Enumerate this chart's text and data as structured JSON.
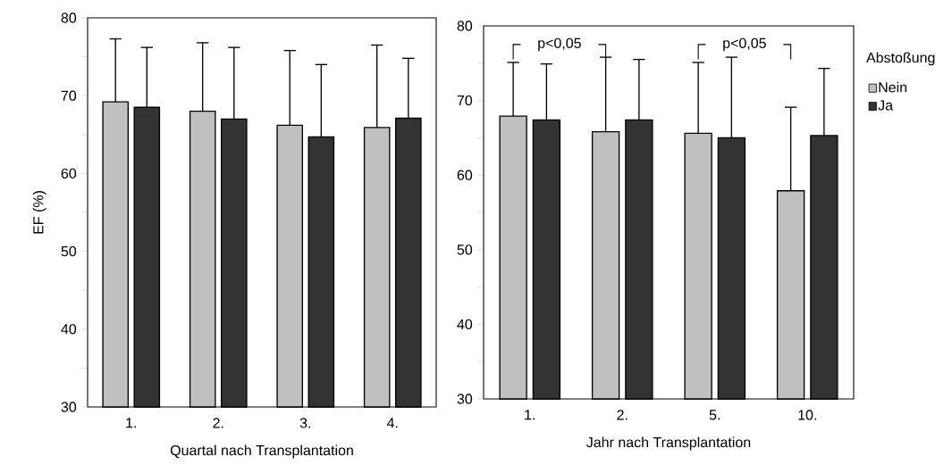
{
  "chart_data": [
    {
      "type": "bar",
      "xlabel": "Quartal nach Transplantation",
      "ylabel": "EF (%)",
      "categories": [
        "1.",
        "2.",
        "3.",
        "4."
      ],
      "series": [
        {
          "color": "#c0c0c0",
          "values": [
            69.2,
            68.0,
            66.2,
            65.9
          ],
          "errors": [
            [
              69.2,
              77.3
            ],
            [
              68.0,
              76.8
            ],
            [
              66.2,
              75.8
            ],
            [
              65.9,
              76.5
            ]
          ]
        },
        {
          "color": "#333333",
          "values": [
            68.5,
            67.0,
            64.7,
            67.1
          ],
          "errors": [
            [
              68.5,
              76.2
            ],
            [
              67.0,
              76.2
            ],
            [
              64.7,
              74.0
            ],
            [
              67.1,
              74.8
            ]
          ]
        }
      ],
      "ylim": [
        30,
        80
      ],
      "yticks": [
        30,
        {
          "value": 35,
          "label": null
        },
        40,
        {
          "value": 45,
          "label": null
        },
        50,
        {
          "value": 55,
          "label": null
        },
        60,
        {
          "value": 65,
          "label": null
        },
        70,
        {
          "value": 75,
          "label": null
        },
        80
      ],
      "grid": false,
      "legend": false
    },
    {
      "type": "bar",
      "xlabel": "Jahr nach Transplantation",
      "legend_title": "Abstoßung",
      "categories": [
        "1.",
        "2.",
        "5.",
        "10."
      ],
      "series": [
        {
          "name": "Nein",
          "color": "#c0c0c0",
          "values": [
            67.9,
            65.8,
            65.6,
            57.9
          ],
          "errors": [
            [
              67.9,
              75.1
            ],
            [
              65.8,
              75.8
            ],
            [
              65.6,
              75.1
            ],
            [
              57.9,
              69.1
            ]
          ]
        },
        {
          "name": "Ja",
          "color": "#333333",
          "values": [
            67.4,
            67.4,
            65.0,
            65.3
          ],
          "errors": [
            [
              67.4,
              74.9
            ],
            [
              67.4,
              75.5
            ],
            [
              65.0,
              75.8
            ],
            [
              65.3,
              74.3
            ]
          ]
        }
      ],
      "ylim": [
        30,
        80
      ],
      "yticks": [
        30,
        {
          "value": 35,
          "label": null
        },
        40,
        {
          "value": 45,
          "label": null
        },
        50,
        {
          "value": 55,
          "label": null
        },
        60,
        {
          "value": 65,
          "label": null
        },
        70,
        {
          "value": 75,
          "label": null
        },
        80
      ],
      "grid": false,
      "legend": "right",
      "annotations": [
        "p<0,05",
        "p<0,05"
      ]
    }
  ]
}
